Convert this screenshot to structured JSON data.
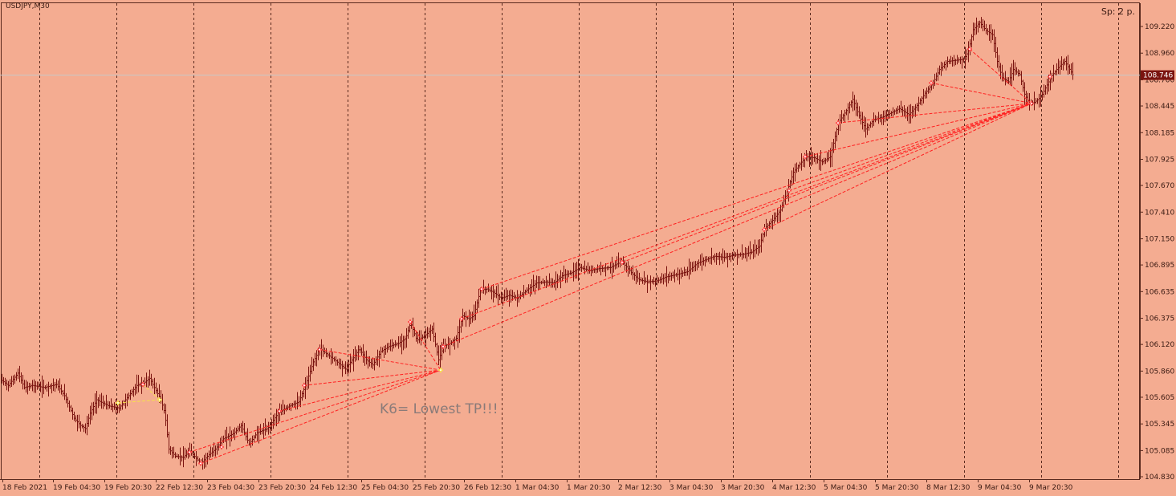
{
  "chart_data": {
    "type": "candlestick",
    "symbol_label": "USDJPY,M30",
    "spread_label": "Sp: 2 p.",
    "annotation": "K6= Lowest TP!!!",
    "current_price_label": "108.746",
    "current_price": 108.746,
    "ylim": [
      104.83,
      109.35
    ],
    "y_ticks": [
      "109.220",
      "108.960",
      "108.700",
      "108.445",
      "108.185",
      "107.925",
      "107.670",
      "107.410",
      "107.150",
      "106.895",
      "106.635",
      "106.375",
      "106.120",
      "105.860",
      "105.605",
      "105.345",
      "105.085",
      "104.830"
    ],
    "x_labels": [
      "18 Feb 2021",
      "19 Feb 04:30",
      "19 Feb 20:30",
      "22 Feb 12:30",
      "23 Feb 04:30",
      "23 Feb 20:30",
      "24 Feb 12:30",
      "25 Feb 04:30",
      "25 Feb 20:30",
      "26 Feb 12:30",
      "1 Mar 04:30",
      "1 Mar 20:30",
      "2 Mar 12:30",
      "3 Mar 04:30",
      "3 Mar 20:30",
      "4 Mar 12:30",
      "5 Mar 04:30",
      "5 Mar 20:30",
      "8 Mar 12:30",
      "9 Mar 04:30",
      "9 Mar 20:30"
    ],
    "grid": "vertical-dashed",
    "price_path": [
      [
        0,
        105.78
      ],
      [
        10,
        105.72
      ],
      [
        22,
        105.84
      ],
      [
        30,
        105.7
      ],
      [
        40,
        105.72
      ],
      [
        55,
        105.7
      ],
      [
        70,
        105.73
      ],
      [
        80,
        105.62
      ],
      [
        92,
        105.4
      ],
      [
        100,
        105.33
      ],
      [
        106,
        105.3
      ],
      [
        112,
        105.45
      ],
      [
        120,
        105.58
      ],
      [
        135,
        105.52
      ],
      [
        148,
        105.5
      ],
      [
        160,
        105.62
      ],
      [
        170,
        105.72
      ],
      [
        178,
        105.74
      ],
      [
        186,
        105.79
      ],
      [
        192,
        105.7
      ],
      [
        200,
        105.58
      ],
      [
        205,
        105.45
      ],
      [
        210,
        105.1
      ],
      [
        218,
        105.03
      ],
      [
        228,
        105.02
      ],
      [
        236,
        105.08
      ],
      [
        244,
        105.01
      ],
      [
        250,
        104.96
      ],
      [
        258,
        105.03
      ],
      [
        268,
        105.1
      ],
      [
        278,
        105.2
      ],
      [
        290,
        105.25
      ],
      [
        300,
        105.33
      ],
      [
        310,
        105.15
      ],
      [
        320,
        105.26
      ],
      [
        333,
        105.3
      ],
      [
        346,
        105.45
      ],
      [
        360,
        105.52
      ],
      [
        372,
        105.56
      ],
      [
        380,
        105.72
      ],
      [
        390,
        105.95
      ],
      [
        398,
        106.08
      ],
      [
        406,
        106.03
      ],
      [
        418,
        105.96
      ],
      [
        430,
        105.88
      ],
      [
        440,
        105.99
      ],
      [
        447,
        106.08
      ],
      [
        456,
        105.97
      ],
      [
        464,
        105.92
      ],
      [
        474,
        106.05
      ],
      [
        484,
        106.1
      ],
      [
        496,
        106.13
      ],
      [
        505,
        106.18
      ],
      [
        511,
        106.33
      ],
      [
        519,
        106.16
      ],
      [
        528,
        106.2
      ],
      [
        538,
        106.27
      ],
      [
        546,
        105.97
      ],
      [
        552,
        106.1
      ],
      [
        560,
        106.13
      ],
      [
        568,
        106.18
      ],
      [
        576,
        106.4
      ],
      [
        584,
        106.37
      ],
      [
        590,
        106.4
      ],
      [
        598,
        106.65
      ],
      [
        606,
        106.66
      ],
      [
        614,
        106.63
      ],
      [
        624,
        106.57
      ],
      [
        634,
        106.6
      ],
      [
        644,
        106.57
      ],
      [
        656,
        106.65
      ],
      [
        668,
        106.72
      ],
      [
        680,
        106.73
      ],
      [
        690,
        106.72
      ],
      [
        700,
        106.79
      ],
      [
        712,
        106.82
      ],
      [
        722,
        106.87
      ],
      [
        734,
        106.84
      ],
      [
        746,
        106.86
      ],
      [
        760,
        106.87
      ],
      [
        774,
        106.93
      ],
      [
        786,
        106.82
      ],
      [
        796,
        106.75
      ],
      [
        806,
        106.73
      ],
      [
        818,
        106.74
      ],
      [
        830,
        106.78
      ],
      [
        842,
        106.8
      ],
      [
        856,
        106.83
      ],
      [
        868,
        106.91
      ],
      [
        880,
        106.95
      ],
      [
        890,
        106.98
      ],
      [
        902,
        106.97
      ],
      [
        914,
        106.99
      ],
      [
        926,
        107.0
      ],
      [
        936,
        107.02
      ],
      [
        946,
        107.08
      ],
      [
        952,
        107.25
      ],
      [
        962,
        107.33
      ],
      [
        972,
        107.43
      ],
      [
        980,
        107.61
      ],
      [
        988,
        107.8
      ],
      [
        996,
        107.88
      ],
      [
        1004,
        107.95
      ],
      [
        1014,
        107.94
      ],
      [
        1024,
        107.9
      ],
      [
        1034,
        107.95
      ],
      [
        1044,
        108.28
      ],
      [
        1054,
        108.4
      ],
      [
        1062,
        108.51
      ],
      [
        1070,
        108.35
      ],
      [
        1078,
        108.22
      ],
      [
        1088,
        108.31
      ],
      [
        1100,
        108.34
      ],
      [
        1110,
        108.38
      ],
      [
        1120,
        108.42
      ],
      [
        1132,
        108.36
      ],
      [
        1142,
        108.45
      ],
      [
        1152,
        108.57
      ],
      [
        1162,
        108.67
      ],
      [
        1170,
        108.8
      ],
      [
        1180,
        108.88
      ],
      [
        1190,
        108.89
      ],
      [
        1200,
        108.9
      ],
      [
        1206,
        108.98
      ],
      [
        1212,
        109.19
      ],
      [
        1220,
        109.26
      ],
      [
        1228,
        109.18
      ],
      [
        1236,
        109.14
      ],
      [
        1242,
        108.88
      ],
      [
        1248,
        108.72
      ],
      [
        1256,
        108.68
      ],
      [
        1262,
        108.8
      ],
      [
        1270,
        108.75
      ],
      [
        1276,
        108.56
      ],
      [
        1282,
        108.47
      ],
      [
        1288,
        108.48
      ],
      [
        1296,
        108.53
      ],
      [
        1302,
        108.62
      ],
      [
        1310,
        108.74
      ],
      [
        1318,
        108.82
      ],
      [
        1326,
        108.88
      ],
      [
        1336,
        108.75
      ]
    ],
    "markers": [
      {
        "x": 178,
        "y": 105.73,
        "color": "#FF5050"
      },
      {
        "x": 199,
        "y": 105.58,
        "color": "#F7E04A"
      },
      {
        "x": 147,
        "y": 105.55,
        "color": "#F7E04A"
      },
      {
        "x": 236,
        "y": 105.07,
        "color": "#FF5050"
      },
      {
        "x": 250,
        "y": 104.96,
        "color": "#FF5050"
      },
      {
        "x": 276,
        "y": 105.12,
        "color": "#FF5050"
      },
      {
        "x": 348,
        "y": 105.47,
        "color": "#FF5050"
      },
      {
        "x": 379,
        "y": 105.72,
        "color": "#FF5050"
      },
      {
        "x": 398,
        "y": 106.07,
        "color": "#FF5050"
      },
      {
        "x": 511,
        "y": 106.34,
        "color": "#FF5050"
      },
      {
        "x": 549,
        "y": 105.87,
        "color": "#F7E04A"
      },
      {
        "x": 552,
        "y": 106.1,
        "color": "#FF5050"
      },
      {
        "x": 575,
        "y": 106.37,
        "color": "#FF5050"
      },
      {
        "x": 600,
        "y": 106.66,
        "color": "#FF5050"
      },
      {
        "x": 775,
        "y": 106.92,
        "color": "#FF5050"
      },
      {
        "x": 952,
        "y": 107.24,
        "color": "#FF5050"
      },
      {
        "x": 983,
        "y": 107.62,
        "color": "#FF5050"
      },
      {
        "x": 1003,
        "y": 107.95,
        "color": "#FF5050"
      },
      {
        "x": 1044,
        "y": 108.28,
        "color": "#FF5050"
      },
      {
        "x": 1160,
        "y": 108.67,
        "color": "#FF5050"
      },
      {
        "x": 1208,
        "y": 109.0,
        "color": "#FF5050"
      },
      {
        "x": 1285,
        "y": 108.47,
        "color": "#FF5050"
      },
      {
        "x": 1308,
        "y": 108.73,
        "color": "#FF5050"
      }
    ],
    "trend_lines": [
      {
        "from": [
          178,
          105.73
        ],
        "to": [
          199,
          105.58
        ],
        "color": "#F7E04A"
      },
      {
        "from": [
          147,
          105.55
        ],
        "to": [
          199,
          105.58
        ],
        "color": "#F7E04A"
      },
      {
        "from": [
          250,
          104.96
        ],
        "to": [
          549,
          105.87
        ],
        "color": "#FF2020"
      },
      {
        "from": [
          236,
          105.07
        ],
        "to": [
          549,
          105.87
        ],
        "color": "#FF2020"
      },
      {
        "from": [
          348,
          105.47
        ],
        "to": [
          549,
          105.87
        ],
        "color": "#FF2020"
      },
      {
        "from": [
          379,
          105.72
        ],
        "to": [
          549,
          105.87
        ],
        "color": "#FF2020"
      },
      {
        "from": [
          398,
          106.07
        ],
        "to": [
          549,
          105.87
        ],
        "color": "#FF2020"
      },
      {
        "from": [
          511,
          106.34
        ],
        "to": [
          549,
          105.87
        ],
        "color": "#FF2020"
      },
      {
        "from": [
          552,
          106.1
        ],
        "to": [
          1285,
          108.47
        ],
        "color": "#FF2020"
      },
      {
        "from": [
          575,
          106.37
        ],
        "to": [
          1285,
          108.47
        ],
        "color": "#FF2020"
      },
      {
        "from": [
          600,
          106.66
        ],
        "to": [
          1285,
          108.47
        ],
        "color": "#FF2020"
      },
      {
        "from": [
          775,
          106.92
        ],
        "to": [
          1285,
          108.47
        ],
        "color": "#FF2020"
      },
      {
        "from": [
          952,
          107.24
        ],
        "to": [
          1285,
          108.47
        ],
        "color": "#FF2020"
      },
      {
        "from": [
          983,
          107.62
        ],
        "to": [
          1285,
          108.47
        ],
        "color": "#FF2020"
      },
      {
        "from": [
          1003,
          107.95
        ],
        "to": [
          1285,
          108.47
        ],
        "color": "#FF2020"
      },
      {
        "from": [
          1044,
          108.28
        ],
        "to": [
          1285,
          108.47
        ],
        "color": "#FF2020"
      },
      {
        "from": [
          1160,
          108.67
        ],
        "to": [
          1285,
          108.47
        ],
        "color": "#FF2020"
      },
      {
        "from": [
          1208,
          109.0
        ],
        "to": [
          1285,
          108.47
        ],
        "color": "#FF2020"
      }
    ],
    "colors": {
      "background": "#F4AC91",
      "candles": "#7A1410",
      "grid": "#5a2a1e",
      "axis_text": "#3a1a12",
      "price_label_bg": "#7A1410",
      "price_line": "#C8C8C8",
      "annotation": "#8A7B79"
    }
  }
}
